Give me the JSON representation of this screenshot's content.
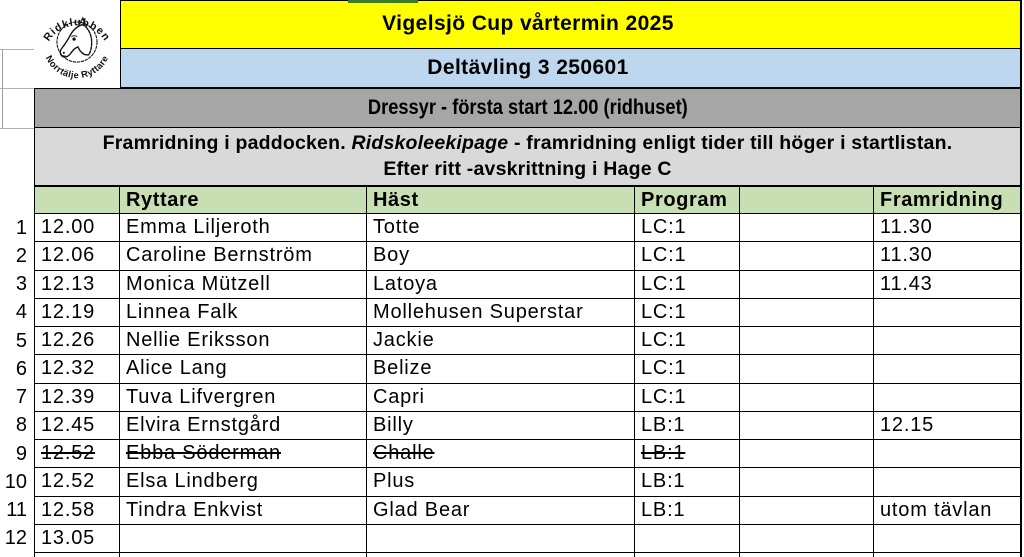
{
  "colors": {
    "yellow": "#FFFF00",
    "blue": "#BDD7EE",
    "gray": "#A6A6A6",
    "light_gray": "#D9D9D9",
    "green": "#C8DFB3",
    "top_sliver_green": "#3D7A23"
  },
  "logo": {
    "top_text": "Ridklubben",
    "bottom_text": "Norrtälje Ryttare",
    "icon": "horse-head-icon"
  },
  "titles": {
    "main": "Vigelsjö Cup vårtermin 2025",
    "sub": "Deltävling 3 250601",
    "section": "Dressyr - första start 12.00 (ridhuset)"
  },
  "note": {
    "line1_pre": "Framridning i paddocken. ",
    "line1_italic": "Ridskoleekipage",
    "line1_post": "  - framridning enligt tider till höger i startlistan.",
    "line2": "Efter ritt -avskrittning i Hage C"
  },
  "table": {
    "headers": {
      "time": "",
      "ryttare": "Ryttare",
      "hast": "Häst",
      "program": "Program",
      "extra": "",
      "framridning": "Framridning"
    },
    "rows": [
      {
        "num": "1",
        "time": "12.00",
        "ryttare": "Emma Liljeroth",
        "hast": "Totte",
        "program": "LC:1",
        "extra": "",
        "framridning": "11.30",
        "struck": false
      },
      {
        "num": "2",
        "time": "12.06",
        "ryttare": "Caroline Bernström",
        "hast": "Boy",
        "program": "LC:1",
        "extra": "",
        "framridning": "11.30",
        "struck": false
      },
      {
        "num": "3",
        "time": "12.13",
        "ryttare": "Monica Mützell",
        "hast": "Latoya",
        "program": "LC:1",
        "extra": "",
        "framridning": "11.43",
        "struck": false
      },
      {
        "num": "4",
        "time": "12.19",
        "ryttare": "Linnea Falk",
        "hast": "Mollehusen Superstar",
        "program": "LC:1",
        "extra": "",
        "framridning": "",
        "struck": false
      },
      {
        "num": "5",
        "time": "12.26",
        "ryttare": "Nellie Eriksson",
        "hast": "Jackie",
        "program": "LC:1",
        "extra": "",
        "framridning": "",
        "struck": false
      },
      {
        "num": "6",
        "time": "12.32",
        "ryttare": "Alice Lang",
        "hast": "Belize",
        "program": "LC:1",
        "extra": "",
        "framridning": "",
        "struck": false
      },
      {
        "num": "7",
        "time": "12.39",
        "ryttare": "Tuva Lifvergren",
        "hast": "Capri",
        "program": "LC:1",
        "extra": "",
        "framridning": "",
        "struck": false
      },
      {
        "num": "8",
        "time": "12.45",
        "ryttare": "Elvira Ernstgård",
        "hast": "Billy",
        "program": "LB:1",
        "extra": "",
        "framridning": "12.15",
        "struck": false
      },
      {
        "num": "9",
        "time": "12.52",
        "ryttare": "Ebba Söderman",
        "hast": "Challe",
        "program": "LB:1",
        "extra": "",
        "framridning": "",
        "struck": true
      },
      {
        "num": "10",
        "time": "12.52",
        "ryttare": "Elsa Lindberg",
        "hast": "Plus",
        "program": "LB:1",
        "extra": "",
        "framridning": "",
        "struck": false
      },
      {
        "num": "11",
        "time": "12.58",
        "ryttare": "Tindra Enkvist",
        "hast": "Glad Bear",
        "program": "LB:1",
        "extra": "",
        "framridning": "utom tävlan",
        "struck": false
      },
      {
        "num": "12",
        "time": "13.05",
        "ryttare": "",
        "hast": "",
        "program": "",
        "extra": "",
        "framridning": "",
        "struck": false
      }
    ]
  }
}
